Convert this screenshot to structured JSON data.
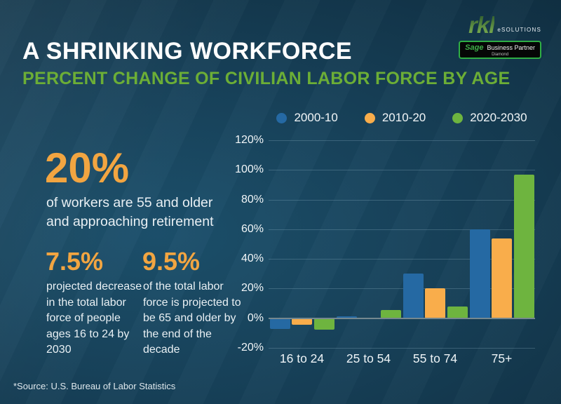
{
  "header": {
    "title": "A SHRINKING WORKFORCE",
    "subtitle": "PERCENT CHANGE OF CIVILIAN LABOR FORCE BY AGE"
  },
  "branding": {
    "logo_text": "rkl",
    "logo_suffix": "eSOLUTIONS",
    "badge_brand": "Sage",
    "badge_label": "Business Partner",
    "badge_tier": "Diamond"
  },
  "stats": [
    {
      "value": "20%",
      "caption": "of workers are 55 and older and approaching retirement"
    },
    {
      "value": "7.5%",
      "caption": "projected decrease in the total labor force of people ages 16 to 24 by 2030"
    },
    {
      "value": "9.5%",
      "caption": "of the total labor force is projected to be 65 and older by the end of the decade"
    }
  ],
  "chart_data": {
    "type": "bar",
    "categories": [
      "16 to 24",
      "25 to 54",
      "55 to 74",
      "75+"
    ],
    "series": [
      {
        "name": "2000-10",
        "color": "#2569a3",
        "values": [
          -7,
          1.5,
          30,
          60
        ]
      },
      {
        "name": "2010-20",
        "color": "#f9ad4b",
        "values": [
          -4.5,
          0,
          20,
          54
        ]
      },
      {
        "name": "2020-2030",
        "color": "#6eb43f",
        "values": [
          -7.5,
          5.5,
          8,
          97
        ]
      }
    ],
    "ylim": [
      -20,
      120
    ],
    "ytick_step": 20,
    "ytick_labels": [
      "120%",
      "100%",
      "80%",
      "60%",
      "40%",
      "20%",
      "0%",
      "-20%"
    ],
    "grid": true,
    "legend_position": "top"
  },
  "source": "*Source: U.S. Bureau of Labor Statistics",
  "colors": {
    "accent_green": "#6cae36",
    "accent_orange": "#f2a541",
    "bar_blue": "#2569a3",
    "bar_orange": "#f9ad4b",
    "bar_green": "#6eb43f"
  }
}
